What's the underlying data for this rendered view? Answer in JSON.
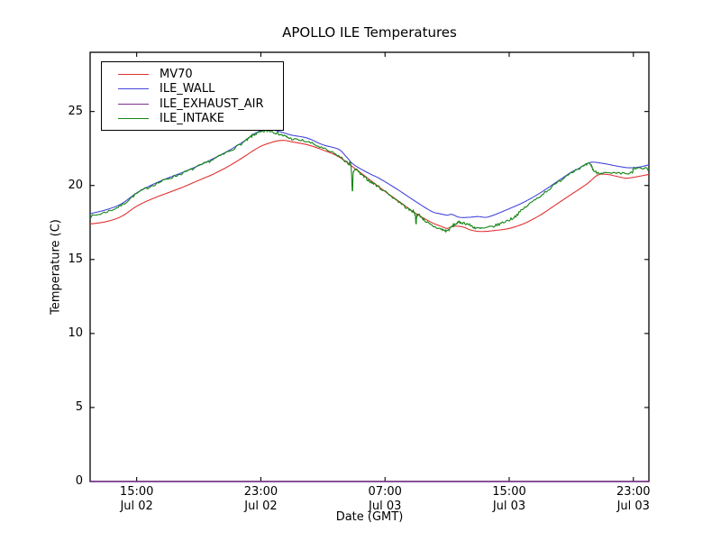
{
  "chart": {
    "title": "APOLLO ILE Temperatures",
    "xlabel": "Date (GMT)",
    "ylabel": "Temperature (C)"
  },
  "chart_data": {
    "type": "line",
    "title": "APOLLO ILE Temperatures",
    "xlabel": "Date (GMT)",
    "ylabel": "Temperature (C)",
    "x_unit": "hours since Jul 02 12:00 GMT",
    "xlim": [
      0,
      36
    ],
    "ylim": [
      0,
      29
    ],
    "grid": false,
    "legend_position": "upper left",
    "y_ticks": [
      0,
      5,
      10,
      15,
      20,
      25
    ],
    "x_ticks": [
      {
        "t": 3,
        "time": "15:00",
        "date": "Jul 02"
      },
      {
        "t": 11,
        "time": "23:00",
        "date": "Jul 02"
      },
      {
        "t": 19,
        "time": "07:00",
        "date": "Jul 03"
      },
      {
        "t": 27,
        "time": "15:00",
        "date": "Jul 03"
      },
      {
        "t": 35,
        "time": "23:00",
        "date": "Jul 03"
      }
    ],
    "series": [
      {
        "name": "MV70",
        "color": "#e03232",
        "noise": 0,
        "points": [
          [
            0,
            17.4
          ],
          [
            1,
            17.55
          ],
          [
            2,
            17.9
          ],
          [
            3,
            18.6
          ],
          [
            4,
            19.1
          ],
          [
            5,
            19.5
          ],
          [
            6,
            19.9
          ],
          [
            7,
            20.35
          ],
          [
            8,
            20.8
          ],
          [
            9,
            21.35
          ],
          [
            10,
            22.0
          ],
          [
            10.5,
            22.35
          ],
          [
            11,
            22.65
          ],
          [
            11.5,
            22.85
          ],
          [
            12,
            23.0
          ],
          [
            12.5,
            23.05
          ],
          [
            13,
            22.95
          ],
          [
            14,
            22.75
          ],
          [
            15,
            22.4
          ],
          [
            16,
            21.95
          ],
          [
            17,
            21.2
          ],
          [
            18,
            20.4
          ],
          [
            19,
            19.6
          ],
          [
            20,
            18.85
          ],
          [
            21,
            18.1
          ],
          [
            22,
            17.5
          ],
          [
            22.6,
            17.25
          ],
          [
            23,
            17.1
          ],
          [
            23.4,
            17.25
          ],
          [
            24,
            17.2
          ],
          [
            24.5,
            17.0
          ],
          [
            25,
            16.9
          ],
          [
            25.5,
            16.9
          ],
          [
            26,
            16.95
          ],
          [
            27,
            17.1
          ],
          [
            28,
            17.45
          ],
          [
            29,
            18.0
          ],
          [
            30,
            18.7
          ],
          [
            31,
            19.4
          ],
          [
            32,
            20.1
          ],
          [
            32.7,
            20.7
          ],
          [
            33.3,
            20.75
          ],
          [
            34,
            20.6
          ],
          [
            34.5,
            20.5
          ],
          [
            35,
            20.55
          ],
          [
            36,
            20.75
          ]
        ]
      },
      {
        "name": "ILE_WALL",
        "color": "#4646dc",
        "noise": 0,
        "points": [
          [
            0,
            18.1
          ],
          [
            1,
            18.35
          ],
          [
            2,
            18.75
          ],
          [
            3,
            19.5
          ],
          [
            4,
            20.05
          ],
          [
            5,
            20.5
          ],
          [
            6,
            20.9
          ],
          [
            7,
            21.35
          ],
          [
            8,
            21.85
          ],
          [
            9,
            22.4
          ],
          [
            10,
            23.05
          ],
          [
            10.5,
            23.45
          ],
          [
            11,
            23.7
          ],
          [
            11.5,
            23.8
          ],
          [
            12,
            23.7
          ],
          [
            12.5,
            23.55
          ],
          [
            13,
            23.4
          ],
          [
            14,
            23.2
          ],
          [
            15,
            22.75
          ],
          [
            16,
            22.45
          ],
          [
            16.5,
            21.95
          ],
          [
            17,
            21.4
          ],
          [
            18,
            20.8
          ],
          [
            18.6,
            20.5
          ],
          [
            19.7,
            19.8
          ],
          [
            21,
            18.9
          ],
          [
            22,
            18.25
          ],
          [
            22.5,
            18.1
          ],
          [
            23,
            18.0
          ],
          [
            23.3,
            18.05
          ],
          [
            23.8,
            17.85
          ],
          [
            24.4,
            17.85
          ],
          [
            25,
            17.9
          ],
          [
            25.5,
            17.85
          ],
          [
            26,
            18.0
          ],
          [
            26.7,
            18.3
          ],
          [
            27.9,
            18.85
          ],
          [
            29,
            19.5
          ],
          [
            30,
            20.2
          ],
          [
            31,
            20.9
          ],
          [
            31.4,
            21.1
          ],
          [
            32.2,
            21.55
          ],
          [
            33,
            21.5
          ],
          [
            34,
            21.3
          ],
          [
            34.7,
            21.2
          ],
          [
            35.4,
            21.25
          ],
          [
            36,
            21.4
          ]
        ]
      },
      {
        "name": "ILE_EXHAUST_AIR",
        "color": "#7d3090",
        "noise": 0,
        "points": [
          [
            0,
            0
          ],
          [
            36,
            0
          ]
        ]
      },
      {
        "name": "ILE_INTAKE",
        "color": "#148414",
        "noise": 0.09,
        "points": [
          [
            0,
            17.9
          ],
          [
            1,
            18.2
          ],
          [
            2,
            18.65
          ],
          [
            3,
            19.45
          ],
          [
            4,
            20.0
          ],
          [
            5,
            20.45
          ],
          [
            6,
            20.85
          ],
          [
            7,
            21.3
          ],
          [
            8,
            21.8
          ],
          [
            9,
            22.35
          ],
          [
            10,
            23.0
          ],
          [
            10.5,
            23.4
          ],
          [
            11,
            23.6
          ],
          [
            11.5,
            23.7
          ],
          [
            12,
            23.55
          ],
          [
            12.5,
            23.35
          ],
          [
            13,
            23.15
          ],
          [
            14,
            22.95
          ],
          [
            15,
            22.5
          ],
          [
            16,
            22.0
          ],
          [
            16.6,
            21.5
          ],
          [
            16.8,
            21.35
          ],
          [
            16.9,
            19.6
          ],
          [
            17.0,
            21.05
          ],
          [
            17.5,
            20.7
          ],
          [
            18,
            20.3
          ],
          [
            18.6,
            19.9
          ],
          [
            19.7,
            19.05
          ],
          [
            20.5,
            18.4
          ],
          [
            20.9,
            18.15
          ],
          [
            21.0,
            17.45
          ],
          [
            21.1,
            18.05
          ],
          [
            21.6,
            17.6
          ],
          [
            22,
            17.3
          ],
          [
            22.6,
            17.05
          ],
          [
            23,
            16.95
          ],
          [
            23.4,
            17.3
          ],
          [
            23.8,
            17.5
          ],
          [
            24.3,
            17.4
          ],
          [
            24.8,
            17.15
          ],
          [
            25.3,
            17.1
          ],
          [
            26,
            17.25
          ],
          [
            26.7,
            17.55
          ],
          [
            27.3,
            17.85
          ],
          [
            28,
            18.5
          ],
          [
            29,
            19.3
          ],
          [
            30,
            20.1
          ],
          [
            31,
            20.9
          ],
          [
            31.8,
            21.3
          ],
          [
            32.2,
            21.45
          ],
          [
            32.5,
            20.95
          ],
          [
            33,
            20.85
          ],
          [
            34,
            20.8
          ],
          [
            34.9,
            20.85
          ],
          [
            35.05,
            21.15
          ],
          [
            36,
            21.1
          ]
        ]
      }
    ]
  }
}
